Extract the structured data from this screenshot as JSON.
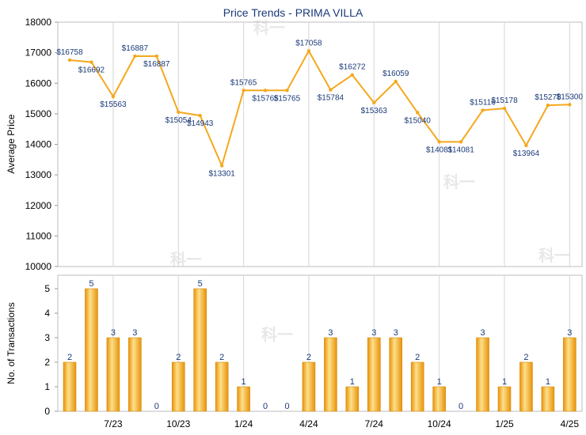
{
  "chart_data": [
    {
      "type": "line",
      "title": "Price Trends - PRIMA VILLA",
      "xlabel": "",
      "ylabel": "Average Price",
      "ylim": [
        10000,
        18000
      ],
      "y_ticks": [
        "10000",
        "11000",
        "12000",
        "13000",
        "14000",
        "15000",
        "16000",
        "17000",
        "18000"
      ],
      "grid": "vertical",
      "color": "#f5a81c",
      "series": [
        {
          "values": [
            16758,
            16692,
            15563,
            16887,
            16887,
            15054,
            14943,
            13301,
            15765,
            15765,
            15765,
            17058,
            15784,
            16272,
            15363,
            16059,
            15040,
            14081,
            14081,
            15116,
            15178,
            13964,
            15278,
            15300
          ],
          "labels": [
            "$16758",
            "$16692",
            "$15563",
            "$16887",
            "$16887",
            "$15054",
            "$14943",
            "$13301",
            "$15765",
            "$15765",
            "$15765",
            "$17058",
            "$15784",
            "$16272",
            "$15363",
            "$16059",
            "$15040",
            "$14081",
            "$14081",
            "$15116",
            "$15178",
            "$13964",
            "$15278",
            "$15300"
          ]
        }
      ]
    },
    {
      "type": "bar",
      "xlabel": "",
      "ylabel": "No. of Transactions",
      "ylim": [
        0,
        5
      ],
      "y_ticks": [
        "0",
        "1",
        "2",
        "3",
        "4",
        "5"
      ],
      "x_tick_labels": [
        "7/23",
        "10/23",
        "1/24",
        "4/24",
        "7/24",
        "10/24",
        "1/25",
        "4/25"
      ],
      "color": "#f5a81c",
      "values": [
        2,
        5,
        3,
        3,
        0,
        2,
        5,
        2,
        1,
        0,
        0,
        2,
        3,
        1,
        3,
        3,
        2,
        1,
        0,
        3,
        1,
        2,
        1,
        3
      ]
    }
  ]
}
